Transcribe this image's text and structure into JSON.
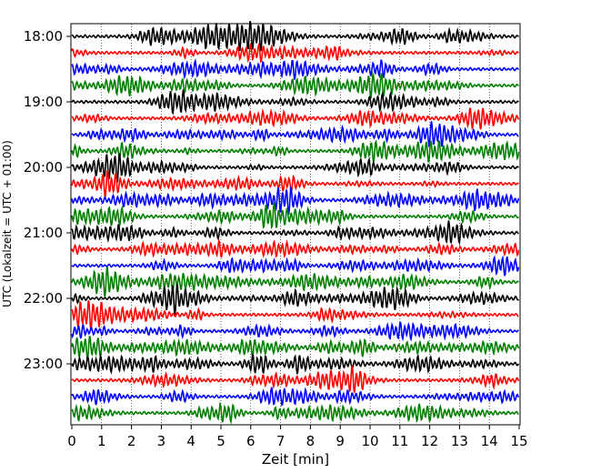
{
  "chart_data": {
    "type": "line",
    "title": "",
    "xlabel": "Zeit  [min]",
    "ylabel": "UTC (Lokalzeit = UTC + 01:00)",
    "xlim": [
      0,
      15
    ],
    "x_ticks": [
      "0",
      "1",
      "2",
      "3",
      "4",
      "5",
      "6",
      "7",
      "8",
      "9",
      "10",
      "11",
      "12",
      "13",
      "14",
      "15"
    ],
    "y_ticks": [
      "18:00",
      "19:00",
      "20:00",
      "21:00",
      "22:00",
      "23:00"
    ],
    "grid": "vertical dotted lines at each minute",
    "trace_interval_min": 15,
    "trace_start": "18:00",
    "trace_count": 24,
    "trace_colors": [
      "#000000",
      "#ff0000",
      "#0000ff",
      "#007f00"
    ]
  }
}
